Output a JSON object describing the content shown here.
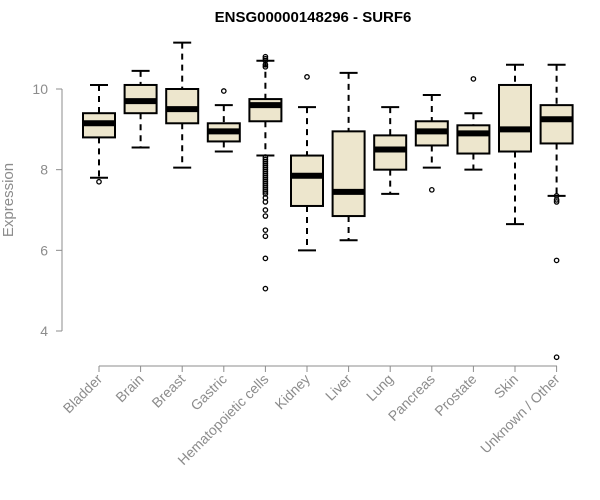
{
  "chart_data": {
    "type": "boxplot",
    "title": "ENSG00000148296 - SURF6",
    "xlabel": "",
    "ylabel": "Expression",
    "ylim": [
      3.2,
      11.4
    ],
    "yticks": [
      4,
      6,
      8,
      10
    ],
    "box_color": "#ede6cd",
    "groups": [
      {
        "name": "Bladder",
        "lower": 7.8,
        "q1": 8.8,
        "median": 9.15,
        "q3": 9.4,
        "upper": 10.1,
        "outliers": [
          7.7
        ]
      },
      {
        "name": "Brain",
        "lower": 8.55,
        "q1": 9.4,
        "median": 9.7,
        "q3": 10.1,
        "upper": 10.45,
        "outliers": []
      },
      {
        "name": "Breast",
        "lower": 8.05,
        "q1": 9.15,
        "median": 9.5,
        "q3": 10.0,
        "upper": 11.15,
        "outliers": []
      },
      {
        "name": "Gastric",
        "lower": 8.45,
        "q1": 8.7,
        "median": 8.95,
        "q3": 9.15,
        "upper": 9.6,
        "outliers": [
          9.95
        ]
      },
      {
        "name": "Hematopoietic cells",
        "lower": 8.35,
        "q1": 9.2,
        "median": 9.6,
        "q3": 9.75,
        "upper": 10.7,
        "outliers": [
          10.8,
          10.75,
          10.7,
          10.6,
          10.55,
          8.3,
          8.25,
          8.2,
          8.15,
          8.1,
          8.05,
          8.0,
          7.95,
          7.9,
          7.85,
          7.8,
          7.75,
          7.7,
          7.65,
          7.6,
          7.55,
          7.5,
          7.45,
          7.4,
          7.3,
          7.2,
          7.0,
          6.85,
          6.5,
          6.35,
          5.8,
          5.05
        ]
      },
      {
        "name": "Kidney",
        "lower": 6.0,
        "q1": 7.1,
        "median": 7.85,
        "q3": 8.35,
        "upper": 9.55,
        "outliers": [
          10.3
        ]
      },
      {
        "name": "Liver",
        "lower": 6.25,
        "q1": 6.85,
        "median": 7.45,
        "q3": 8.95,
        "upper": 10.4,
        "outliers": []
      },
      {
        "name": "Lung",
        "lower": 7.4,
        "q1": 8.0,
        "median": 8.5,
        "q3": 8.85,
        "upper": 9.55,
        "outliers": []
      },
      {
        "name": "Pancreas",
        "lower": 8.05,
        "q1": 8.6,
        "median": 8.95,
        "q3": 9.2,
        "upper": 9.85,
        "outliers": [
          7.5
        ]
      },
      {
        "name": "Prostate",
        "lower": 8.0,
        "q1": 8.4,
        "median": 8.9,
        "q3": 9.1,
        "upper": 9.4,
        "outliers": [
          10.25
        ]
      },
      {
        "name": "Skin",
        "lower": 6.65,
        "q1": 8.45,
        "median": 9.0,
        "q3": 10.1,
        "upper": 10.6,
        "outliers": []
      },
      {
        "name": "Unknown / Other",
        "lower": 7.35,
        "q1": 8.65,
        "median": 9.25,
        "q3": 9.6,
        "upper": 10.6,
        "outliers": [
          7.35,
          7.25,
          7.2,
          5.75,
          3.35
        ]
      }
    ]
  }
}
